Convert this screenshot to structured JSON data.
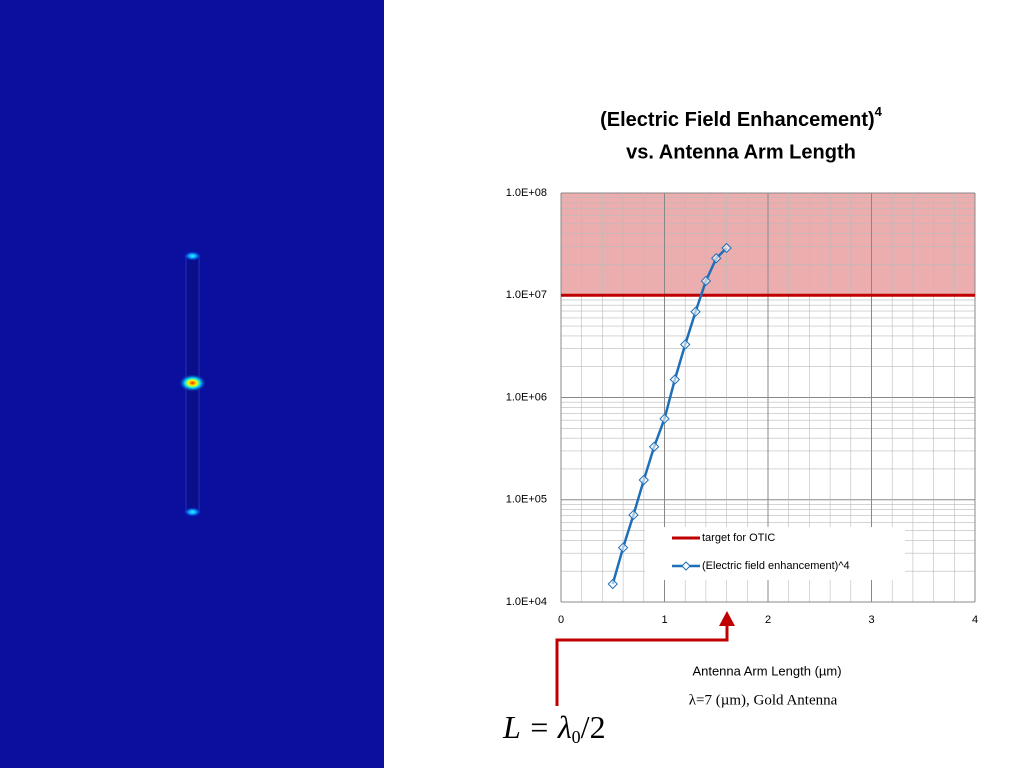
{
  "chart_data": {
    "type": "line",
    "title": "(Electric Field Enhancement)",
    "title_superscript": "4",
    "title_line2": "vs. Antenna Arm Length",
    "x_label": "Antenna Arm Length (µm)",
    "subtitle": "λ=7 (µm), Gold Antenna",
    "formula": [
      "L = λ",
      "0",
      "/2"
    ],
    "x": [
      0.5,
      0.6,
      0.7,
      0.8,
      0.9,
      1.0,
      1.1,
      1.2,
      1.3,
      1.4,
      1.5,
      1.6
    ],
    "series": [
      {
        "name": "(Electric field enhancement)^4",
        "color": "#1f6fb8",
        "values": [
          15000,
          34000,
          71000,
          156000,
          330000,
          620000,
          1500000,
          3300000,
          6900000,
          13800000,
          23000000,
          29000000
        ]
      }
    ],
    "target": {
      "name": "target for OTIC",
      "color": "#c00000",
      "value": 10000000
    },
    "xlim": [
      0,
      4
    ],
    "xticks": [
      0,
      1,
      2,
      3,
      4
    ],
    "ylim": [
      10000,
      100000000
    ],
    "yticks": [
      {
        "value": 10000,
        "label": "1.0E+04"
      },
      {
        "value": 100000,
        "label": "1.0E+05"
      },
      {
        "value": 1000000,
        "label": "1.0E+06"
      },
      {
        "value": 10000000,
        "label": "1.0E+07"
      },
      {
        "value": 100000000,
        "label": "1.0E+08"
      }
    ],
    "log_y": true,
    "grid": true,
    "minor_grid": true,
    "legend": "lower-right"
  }
}
